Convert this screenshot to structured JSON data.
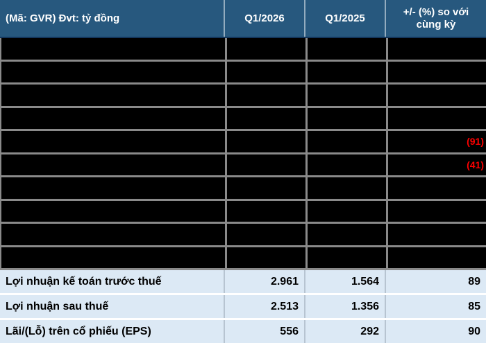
{
  "header": {
    "unit_label": "(Mã: GVR) Đvt: tỷ đồng",
    "col_q1_2026": "Q1/2026",
    "col_q1_2025": "Q1/2025",
    "col_change": "+/- (%) so với cùng kỳ"
  },
  "redacted_rows": [
    {
      "change": ""
    },
    {
      "change": ""
    },
    {
      "change": ""
    },
    {
      "change": ""
    },
    {
      "change": "(91)"
    },
    {
      "change": "(41)"
    },
    {
      "change": ""
    },
    {
      "change": ""
    },
    {
      "change": ""
    },
    {
      "change": ""
    }
  ],
  "rows": [
    {
      "label": "Lợi nhuận kế toán trước thuế",
      "q1_2026": "2.961",
      "q1_2025": "1.564",
      "change": "89"
    },
    {
      "label": "Lợi nhuận sau thuế",
      "q1_2026": "2.513",
      "q1_2025": "1.356",
      "change": "85"
    },
    {
      "label": "Lãi/(Lỗ) trên cổ phiếu (EPS)",
      "q1_2026": "556",
      "q1_2025": "292",
      "change": "90"
    }
  ],
  "colors": {
    "header_bg": "#27587e",
    "header_text": "#ffffff",
    "redacted_bg": "#000000",
    "grid_gray": "#8a8a8a",
    "row_bg": "#dce9f5",
    "row_text": "#000000",
    "negative_red": "#fe0000"
  }
}
